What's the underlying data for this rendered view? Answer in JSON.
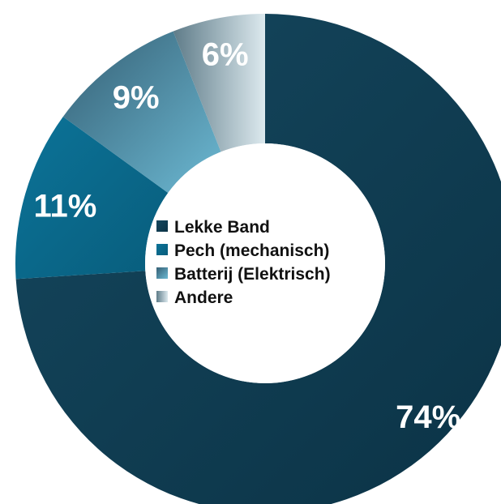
{
  "chart_data": {
    "type": "pie",
    "donut": true,
    "categories": [
      "Lekke Band",
      "Pech (mechanisch)",
      "Batterij (Elektrisch)",
      "Andere"
    ],
    "values": [
      74,
      11,
      9,
      6
    ],
    "value_labels": [
      "74%",
      "11%",
      "9%",
      "6%"
    ],
    "unit": "%",
    "colors": {
      "Lekke Band": "#0f3f56",
      "Pech (mechanisch)": "#0a6d90",
      "Batterij (Elektrisch)": "#4e9dbb",
      "Andere": "#a9c4cf"
    },
    "legend": {
      "placement": "center",
      "entries": [
        "Lekke Band",
        "Pech (mechanisch)",
        "Batterij (Elektrisch)",
        "Andere"
      ]
    }
  }
}
